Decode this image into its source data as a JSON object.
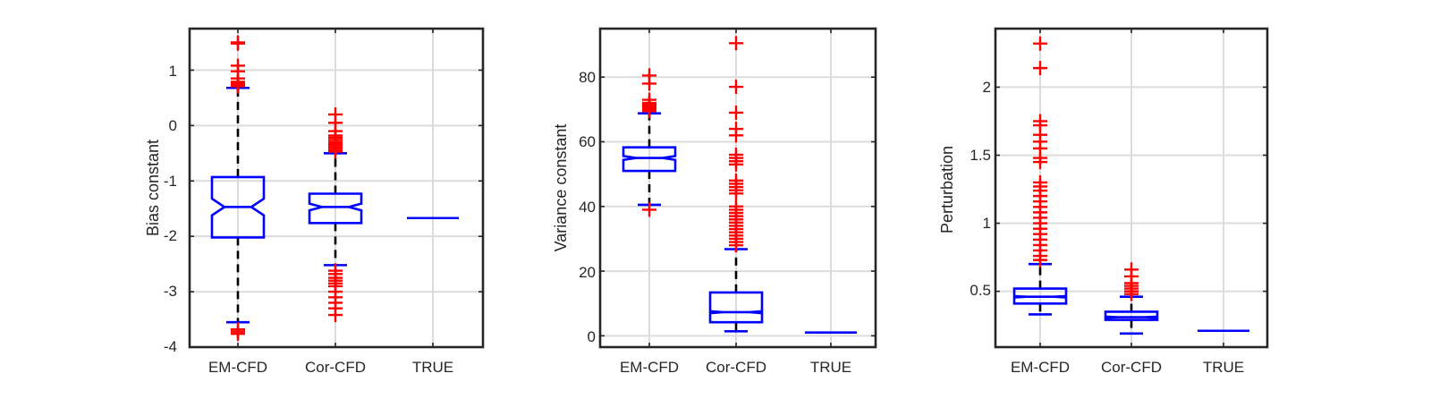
{
  "chart_data": [
    {
      "type": "boxplot",
      "ylabel": "Bias constant",
      "categories": [
        "EM-CFD",
        "Cor-CFD",
        "TRUE"
      ],
      "ylim": [
        -4,
        1.75
      ],
      "yticks": [
        -4,
        -3,
        -2,
        -1,
        0,
        1
      ],
      "ytick_labels": [
        "-4",
        "-3",
        "-2",
        "-1",
        "0",
        "1"
      ],
      "grid": true,
      "notched": true,
      "boxes": [
        {
          "category": "EM-CFD",
          "q1": -2.02,
          "median": -1.47,
          "q3": -0.93,
          "notch_low": -1.62,
          "notch_high": -1.32,
          "whisker_low": -3.55,
          "whisker_high": 0.68,
          "outliers": [
            1.5,
            1.48,
            1.08,
            0.98,
            0.85,
            0.79,
            0.76,
            0.73,
            0.71,
            -3.68,
            -3.72,
            -3.76
          ]
        },
        {
          "category": "Cor-CFD",
          "q1": -1.76,
          "median": -1.47,
          "q3": -1.23,
          "notch_low": -1.53,
          "notch_high": -1.41,
          "whisker_low": -2.52,
          "whisker_high": -0.5,
          "outliers": [
            0.2,
            0.05,
            -0.1,
            -0.18,
            -0.22,
            -0.26,
            -0.3,
            -0.33,
            -0.36,
            -0.4,
            -0.44,
            -0.47,
            -2.62,
            -2.68,
            -2.75,
            -2.8,
            -2.85,
            -2.9,
            -3.0,
            -3.1,
            -3.2,
            -3.3,
            -3.42
          ]
        },
        {
          "category": "TRUE",
          "q1": -1.67,
          "median": -1.67,
          "q3": -1.67,
          "notch_low": -1.67,
          "notch_high": -1.67,
          "whisker_low": -1.67,
          "whisker_high": -1.67,
          "outliers": []
        }
      ]
    },
    {
      "type": "boxplot",
      "ylabel": "Variance constant",
      "categories": [
        "EM-CFD",
        "Cor-CFD",
        "TRUE"
      ],
      "ylim": [
        -3.5,
        95
      ],
      "yticks": [
        0,
        20,
        40,
        60,
        80
      ],
      "ytick_labels": [
        "0",
        "20",
        "40",
        "60",
        "80"
      ],
      "grid": true,
      "notched": true,
      "boxes": [
        {
          "category": "EM-CFD",
          "q1": 51,
          "median": 55,
          "q3": 58.3,
          "notch_low": 54.4,
          "notch_high": 55.6,
          "whisker_low": 40.5,
          "whisker_high": 68.8,
          "outliers": [
            80.5,
            78,
            73,
            72,
            71.5,
            71,
            70.5,
            70,
            69.5,
            39
          ]
        },
        {
          "category": "Cor-CFD",
          "q1": 4.2,
          "median": 7.3,
          "q3": 13.4,
          "notch_low": 7.0,
          "notch_high": 7.6,
          "whisker_low": 1.4,
          "whisker_high": 26.8,
          "outliers": [
            90.5,
            77,
            69,
            64,
            62,
            56,
            55,
            54,
            53,
            48,
            47,
            46,
            45,
            44,
            40,
            39,
            38,
            37,
            36,
            35,
            34,
            33,
            32,
            31,
            30,
            29,
            28
          ]
        },
        {
          "category": "TRUE",
          "q1": 1,
          "median": 1,
          "q3": 1,
          "notch_low": 1,
          "notch_high": 1,
          "whisker_low": 1,
          "whisker_high": 1,
          "outliers": []
        }
      ]
    },
    {
      "type": "boxplot",
      "ylabel": "Perturbation",
      "categories": [
        "EM-CFD",
        "Cor-CFD",
        "TRUE"
      ],
      "ylim": [
        0.09,
        2.43
      ],
      "yticks": [
        0.5,
        1,
        1.5,
        2
      ],
      "ytick_labels": [
        "0.5",
        "1",
        "1.5",
        "2"
      ],
      "grid": true,
      "notched": true,
      "boxes": [
        {
          "category": "EM-CFD",
          "q1": 0.41,
          "median": 0.46,
          "q3": 0.52,
          "notch_low": 0.455,
          "notch_high": 0.465,
          "whisker_low": 0.33,
          "whisker_high": 0.7,
          "outliers": [
            2.32,
            2.14,
            1.75,
            1.72,
            1.65,
            1.6,
            1.55,
            1.48,
            1.45,
            1.3,
            1.27,
            1.24,
            1.2,
            1.16,
            1.12,
            1.08,
            1.04,
            1.0,
            0.96,
            0.92,
            0.88,
            0.84,
            0.8,
            0.76,
            0.73
          ]
        },
        {
          "category": "Cor-CFD",
          "q1": 0.29,
          "median": 0.31,
          "q3": 0.35,
          "notch_low": 0.306,
          "notch_high": 0.314,
          "whisker_low": 0.19,
          "whisker_high": 0.46,
          "outliers": [
            0.66,
            0.61,
            0.56,
            0.54,
            0.52,
            0.5,
            0.48
          ]
        },
        {
          "category": "TRUE",
          "q1": 0.21,
          "median": 0.21,
          "q3": 0.21,
          "notch_low": 0.21,
          "notch_high": 0.21,
          "whisker_low": 0.21,
          "whisker_high": 0.21,
          "outliers": []
        }
      ]
    }
  ],
  "colors": {
    "box": "#0000ff",
    "whisker": "#000000",
    "outlier": "#ff0000",
    "grid": "#dcdcdc",
    "axes": "#262626"
  }
}
